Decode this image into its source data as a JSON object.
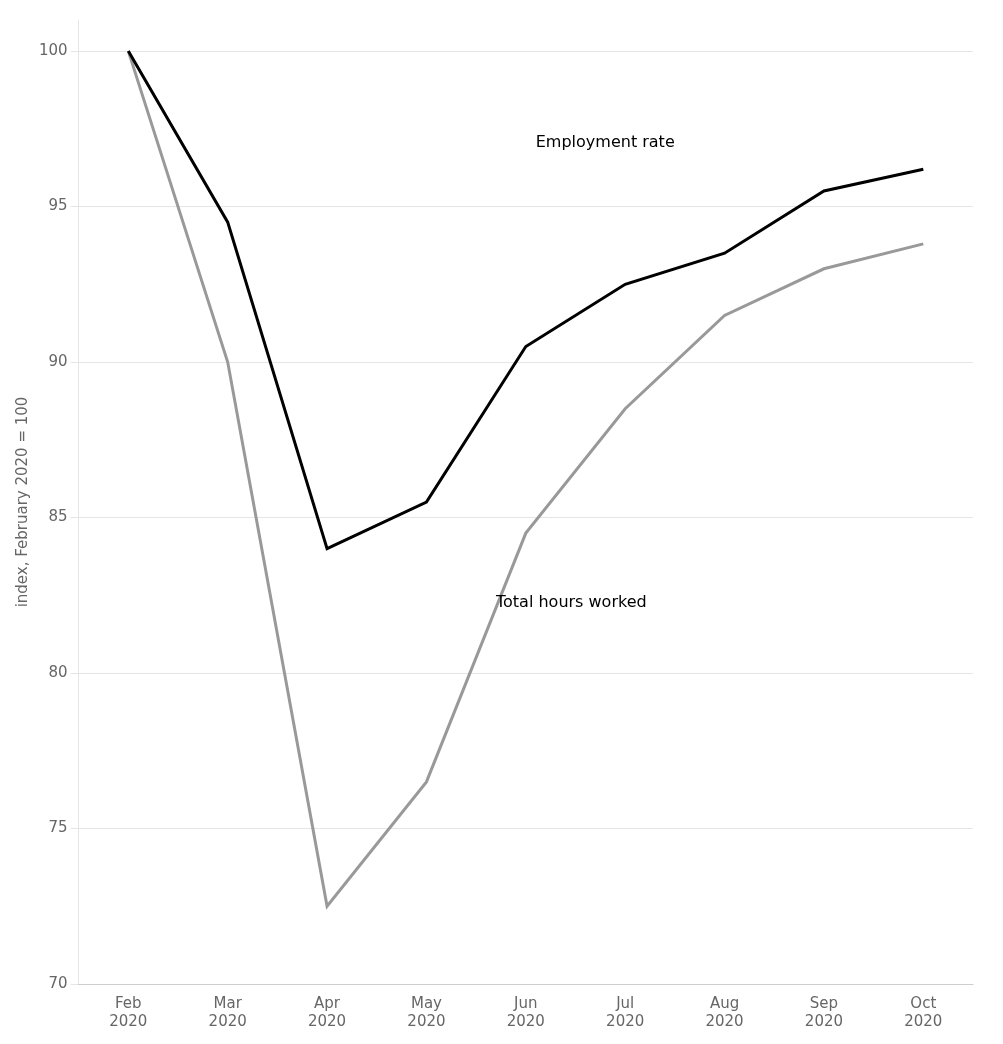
{
  "chart_data": {
    "type": "line",
    "ylabel": "index, February 2020 = 100",
    "categories": [
      "Feb\n2020",
      "Mar\n2020",
      "Apr\n2020",
      "May\n2020",
      "Jun\n2020",
      "Jul\n2020",
      "Aug\n2020",
      "Sep\n2020",
      "Oct\n2020"
    ],
    "series": [
      {
        "name": "Employment rate",
        "color": "#000000",
        "values": [
          100,
          94.5,
          84.0,
          85.5,
          90.5,
          92.5,
          93.5,
          95.5,
          96.2
        ]
      },
      {
        "name": "Total hours worked",
        "color": "#999999",
        "values": [
          100,
          90.0,
          72.5,
          76.5,
          84.5,
          88.5,
          91.5,
          93.0,
          93.8
        ]
      }
    ],
    "annotations": [
      {
        "text": "Employment rate",
        "x": 4.1,
        "y": 96.8,
        "color": "#000000"
      },
      {
        "text": "Total hours worked",
        "x": 3.7,
        "y": 82.5,
        "color": "#000000"
      }
    ],
    "ylim": [
      70,
      101
    ],
    "yticks": [
      70,
      75,
      80,
      85,
      90,
      95,
      100
    ],
    "grid": true
  }
}
